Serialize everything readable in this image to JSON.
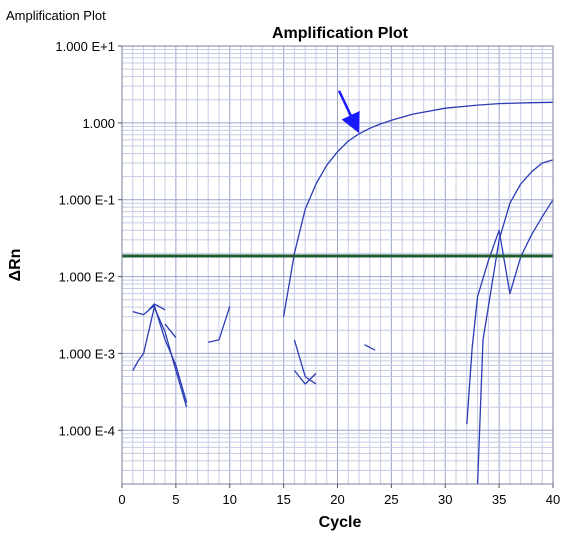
{
  "window": {
    "title": "Amplification Plot"
  },
  "chart_data": {
    "type": "line",
    "title": "Amplification Plot",
    "xlabel": "Cycle",
    "ylabel": "ΔRn",
    "yscale": "log",
    "xlim": [
      0,
      40
    ],
    "ylim": [
      2e-05,
      10
    ],
    "grid": true,
    "x_ticks": [
      0,
      5,
      10,
      15,
      20,
      25,
      30,
      35,
      40
    ],
    "x_tick_labels": [
      "0",
      "5",
      "10",
      "15",
      "20",
      "25",
      "30",
      "35",
      "40"
    ],
    "y_ticks": [
      10,
      1,
      0.1,
      0.01,
      0.001,
      0.0001
    ],
    "y_tick_labels": [
      "1.000 E+1",
      "1.000",
      "1.000 E-1",
      "1.000 E-2",
      "1.000 E-3",
      "1.000 E-4"
    ],
    "threshold": {
      "value": 0.0185,
      "color": "#1e5a32"
    },
    "series_color": "#2c3cb4",
    "arrow": {
      "color": "#1a1aff",
      "x": 22,
      "y": 0.7
    },
    "series": [
      {
        "x": [
          15,
          16,
          17,
          18,
          19,
          20,
          21,
          22,
          23,
          24,
          25,
          27,
          30,
          33,
          35,
          38,
          40
        ],
        "y": [
          0.003,
          0.02,
          0.075,
          0.16,
          0.28,
          0.42,
          0.58,
          0.72,
          0.85,
          0.97,
          1.08,
          1.3,
          1.55,
          1.7,
          1.78,
          1.83,
          1.85
        ]
      },
      {
        "x": [
          33,
          33.5,
          34,
          35,
          36,
          37,
          38,
          39,
          40
        ],
        "y": [
          2e-05,
          0.0015,
          0.004,
          0.03,
          0.09,
          0.16,
          0.23,
          0.3,
          0.33
        ]
      },
      {
        "x": [
          32,
          32.5,
          33,
          34,
          35,
          36,
          37,
          38,
          39,
          40
        ],
        "y": [
          0.00012,
          0.0012,
          0.0055,
          0.016,
          0.04,
          0.006,
          0.018,
          0.035,
          0.06,
          0.1
        ]
      },
      {
        "x": [
          1,
          1.5,
          2,
          3,
          4,
          5,
          6
        ],
        "y": [
          0.0006,
          0.0008,
          0.001,
          0.004,
          0.0019,
          0.0006,
          0.0002
        ]
      },
      {
        "x": [
          1,
          2,
          3,
          4,
          5,
          6
        ],
        "y": [
          0.0035,
          0.0032,
          0.0042,
          0.0015,
          0.0007,
          0.00023
        ]
      },
      {
        "x": [
          2.5,
          3,
          4
        ],
        "y": [
          0.0037,
          0.0044,
          0.0037
        ]
      },
      {
        "x": [
          4,
          5
        ],
        "y": [
          0.0024,
          0.0016
        ]
      },
      {
        "x": [
          8,
          9
        ],
        "y": [
          0.0014,
          0.0015
        ]
      },
      {
        "x": [
          9,
          10
        ],
        "y": [
          0.0015,
          0.0041
        ]
      },
      {
        "x": [
          16,
          17,
          18
        ],
        "y": [
          0.0015,
          0.0005,
          0.0004
        ]
      },
      {
        "x": [
          16,
          17,
          18
        ],
        "y": [
          0.0006,
          0.0004,
          0.00055
        ]
      },
      {
        "x": [
          22.5,
          23.5
        ],
        "y": [
          0.0013,
          0.0011
        ]
      }
    ]
  }
}
